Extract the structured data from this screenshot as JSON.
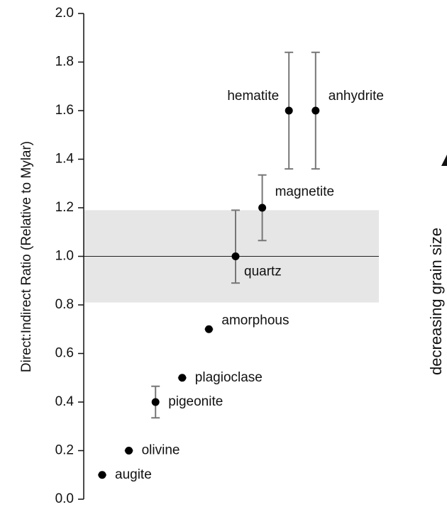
{
  "chart_data": {
    "type": "scatter",
    "y_label": "Direct:Indirect Ratio (Relative to Mylar)",
    "side_label": "decreasing grain size",
    "categories": [
      "augite",
      "olivine",
      "pigeonite",
      "plagioclase",
      "amorphous",
      "quartz",
      "magnetite",
      "hematite",
      "anhydrite"
    ],
    "values": [
      0.1,
      0.2,
      0.4,
      0.5,
      0.7,
      1.0,
      1.2,
      1.6,
      1.6
    ],
    "err_plus": [
      0.01,
      0.01,
      0.065,
      0.01,
      0,
      0.19,
      0.135,
      0.24,
      0.24
    ],
    "err_minus": [
      0.01,
      0.01,
      0.065,
      0.01,
      0,
      0.11,
      0.135,
      0.24,
      0.24
    ],
    "color": "#000000",
    "band": [
      0.81,
      1.19
    ],
    "reference_line": 1.0,
    "ylim": [
      0,
      2.0
    ],
    "yticks": [
      {
        "value": 0,
        "label": "0.0"
      },
      0.2,
      0.4,
      0.6,
      0.8,
      {
        "value": 1.0,
        "label": "1.0"
      },
      1.2,
      1.4,
      1.6,
      1.8,
      {
        "value": 2.0,
        "label": "2.0"
      }
    ]
  }
}
